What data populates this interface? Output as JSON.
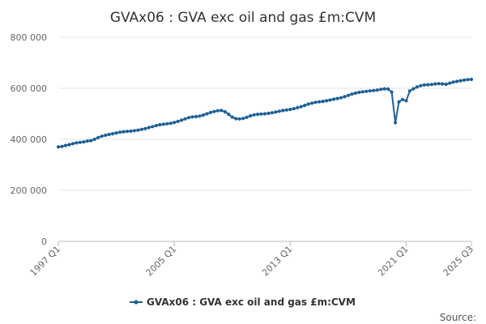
{
  "chart_data": {
    "type": "line",
    "title": "GVAx06 : GVA exc oil and gas £m:CVM",
    "xlabel": "",
    "ylabel": "",
    "ylim": [
      0,
      800000
    ],
    "y_ticks": [
      0,
      200000,
      400000,
      600000,
      800000
    ],
    "y_tick_labels": [
      "0",
      "200 000",
      "400 000",
      "600 000",
      "800 000"
    ],
    "x_tick_labels": [
      "1997 Q1",
      "2005 Q1",
      "2013 Q1",
      "2021 Q1",
      "2025 Q3"
    ],
    "x_tick_quarter_index": [
      0,
      32,
      64,
      96,
      114
    ],
    "grid": "horizontal",
    "legend_position": "bottom",
    "series_color": "#206095",
    "series": [
      {
        "name": "GVAx06 : GVA exc oil and gas £m:CVM",
        "x_start": "1997 Q1",
        "x_end": "2025 Q3",
        "frequency": "quarterly",
        "values": [
          370000,
          372000,
          376000,
          379000,
          383000,
          386000,
          388000,
          390000,
          393000,
          395000,
          400000,
          407000,
          412000,
          416000,
          419000,
          422000,
          425000,
          428000,
          430000,
          431000,
          432000,
          434000,
          436000,
          439000,
          442000,
          446000,
          450000,
          454000,
          457000,
          459000,
          461000,
          463000,
          466000,
          470000,
          475000,
          480000,
          485000,
          488000,
          489000,
          491000,
          495000,
          500000,
          505000,
          509000,
          512000,
          513000,
          508000,
          498000,
          487000,
          481000,
          480000,
          482000,
          486000,
          492000,
          496000,
          498000,
          499000,
          500000,
          502000,
          504000,
          507000,
          510000,
          513000,
          515000,
          517000,
          520000,
          524000,
          528000,
          533000,
          538000,
          542000,
          545000,
          547000,
          549000,
          551000,
          554000,
          557000,
          560000,
          563000,
          567000,
          572000,
          577000,
          581000,
          584000,
          586000,
          588000,
          590000,
          591000,
          593000,
          596000,
          598000,
          597000,
          585000,
          465000,
          547000,
          556000,
          551000,
          590000,
          598000,
          605000,
          610000,
          613000,
          614000,
          615000,
          617000,
          618000,
          617000,
          616000,
          620000,
          624000,
          627000,
          630000,
          632000,
          634000,
          635000
        ]
      }
    ]
  },
  "legend": {
    "label": "GVAx06 : GVA exc oil and gas £m:CVM"
  },
  "footer": {
    "source": "Source:"
  }
}
